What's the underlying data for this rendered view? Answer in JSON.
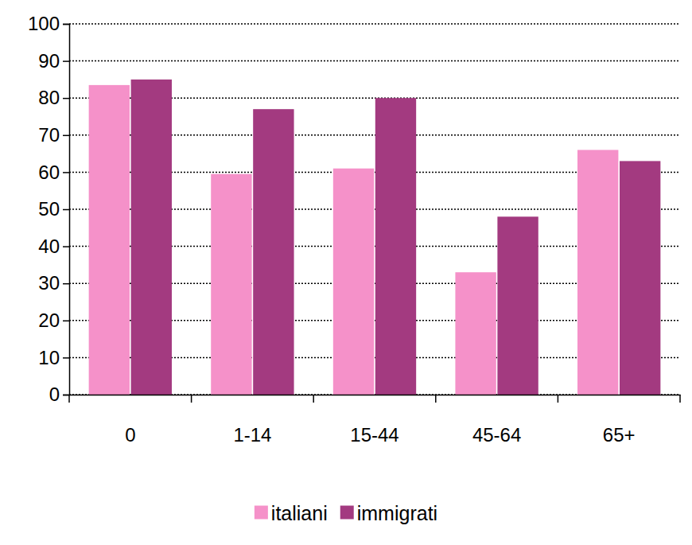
{
  "chart_data": {
    "type": "bar",
    "categories": [
      "0",
      "1-14",
      "15-44",
      "45-64",
      "65+"
    ],
    "series": [
      {
        "name": "italiani",
        "color": "#f591c9",
        "values": [
          83.5,
          59.5,
          61,
          33,
          66
        ]
      },
      {
        "name": "immigrati",
        "color": "#a33a80",
        "values": [
          85,
          77,
          80,
          48,
          63
        ]
      }
    ],
    "ylim": [
      0,
      100
    ],
    "yticks": [
      0,
      10,
      20,
      30,
      40,
      50,
      60,
      70,
      80,
      90,
      100
    ],
    "grid": true,
    "legend": "bottom"
  }
}
